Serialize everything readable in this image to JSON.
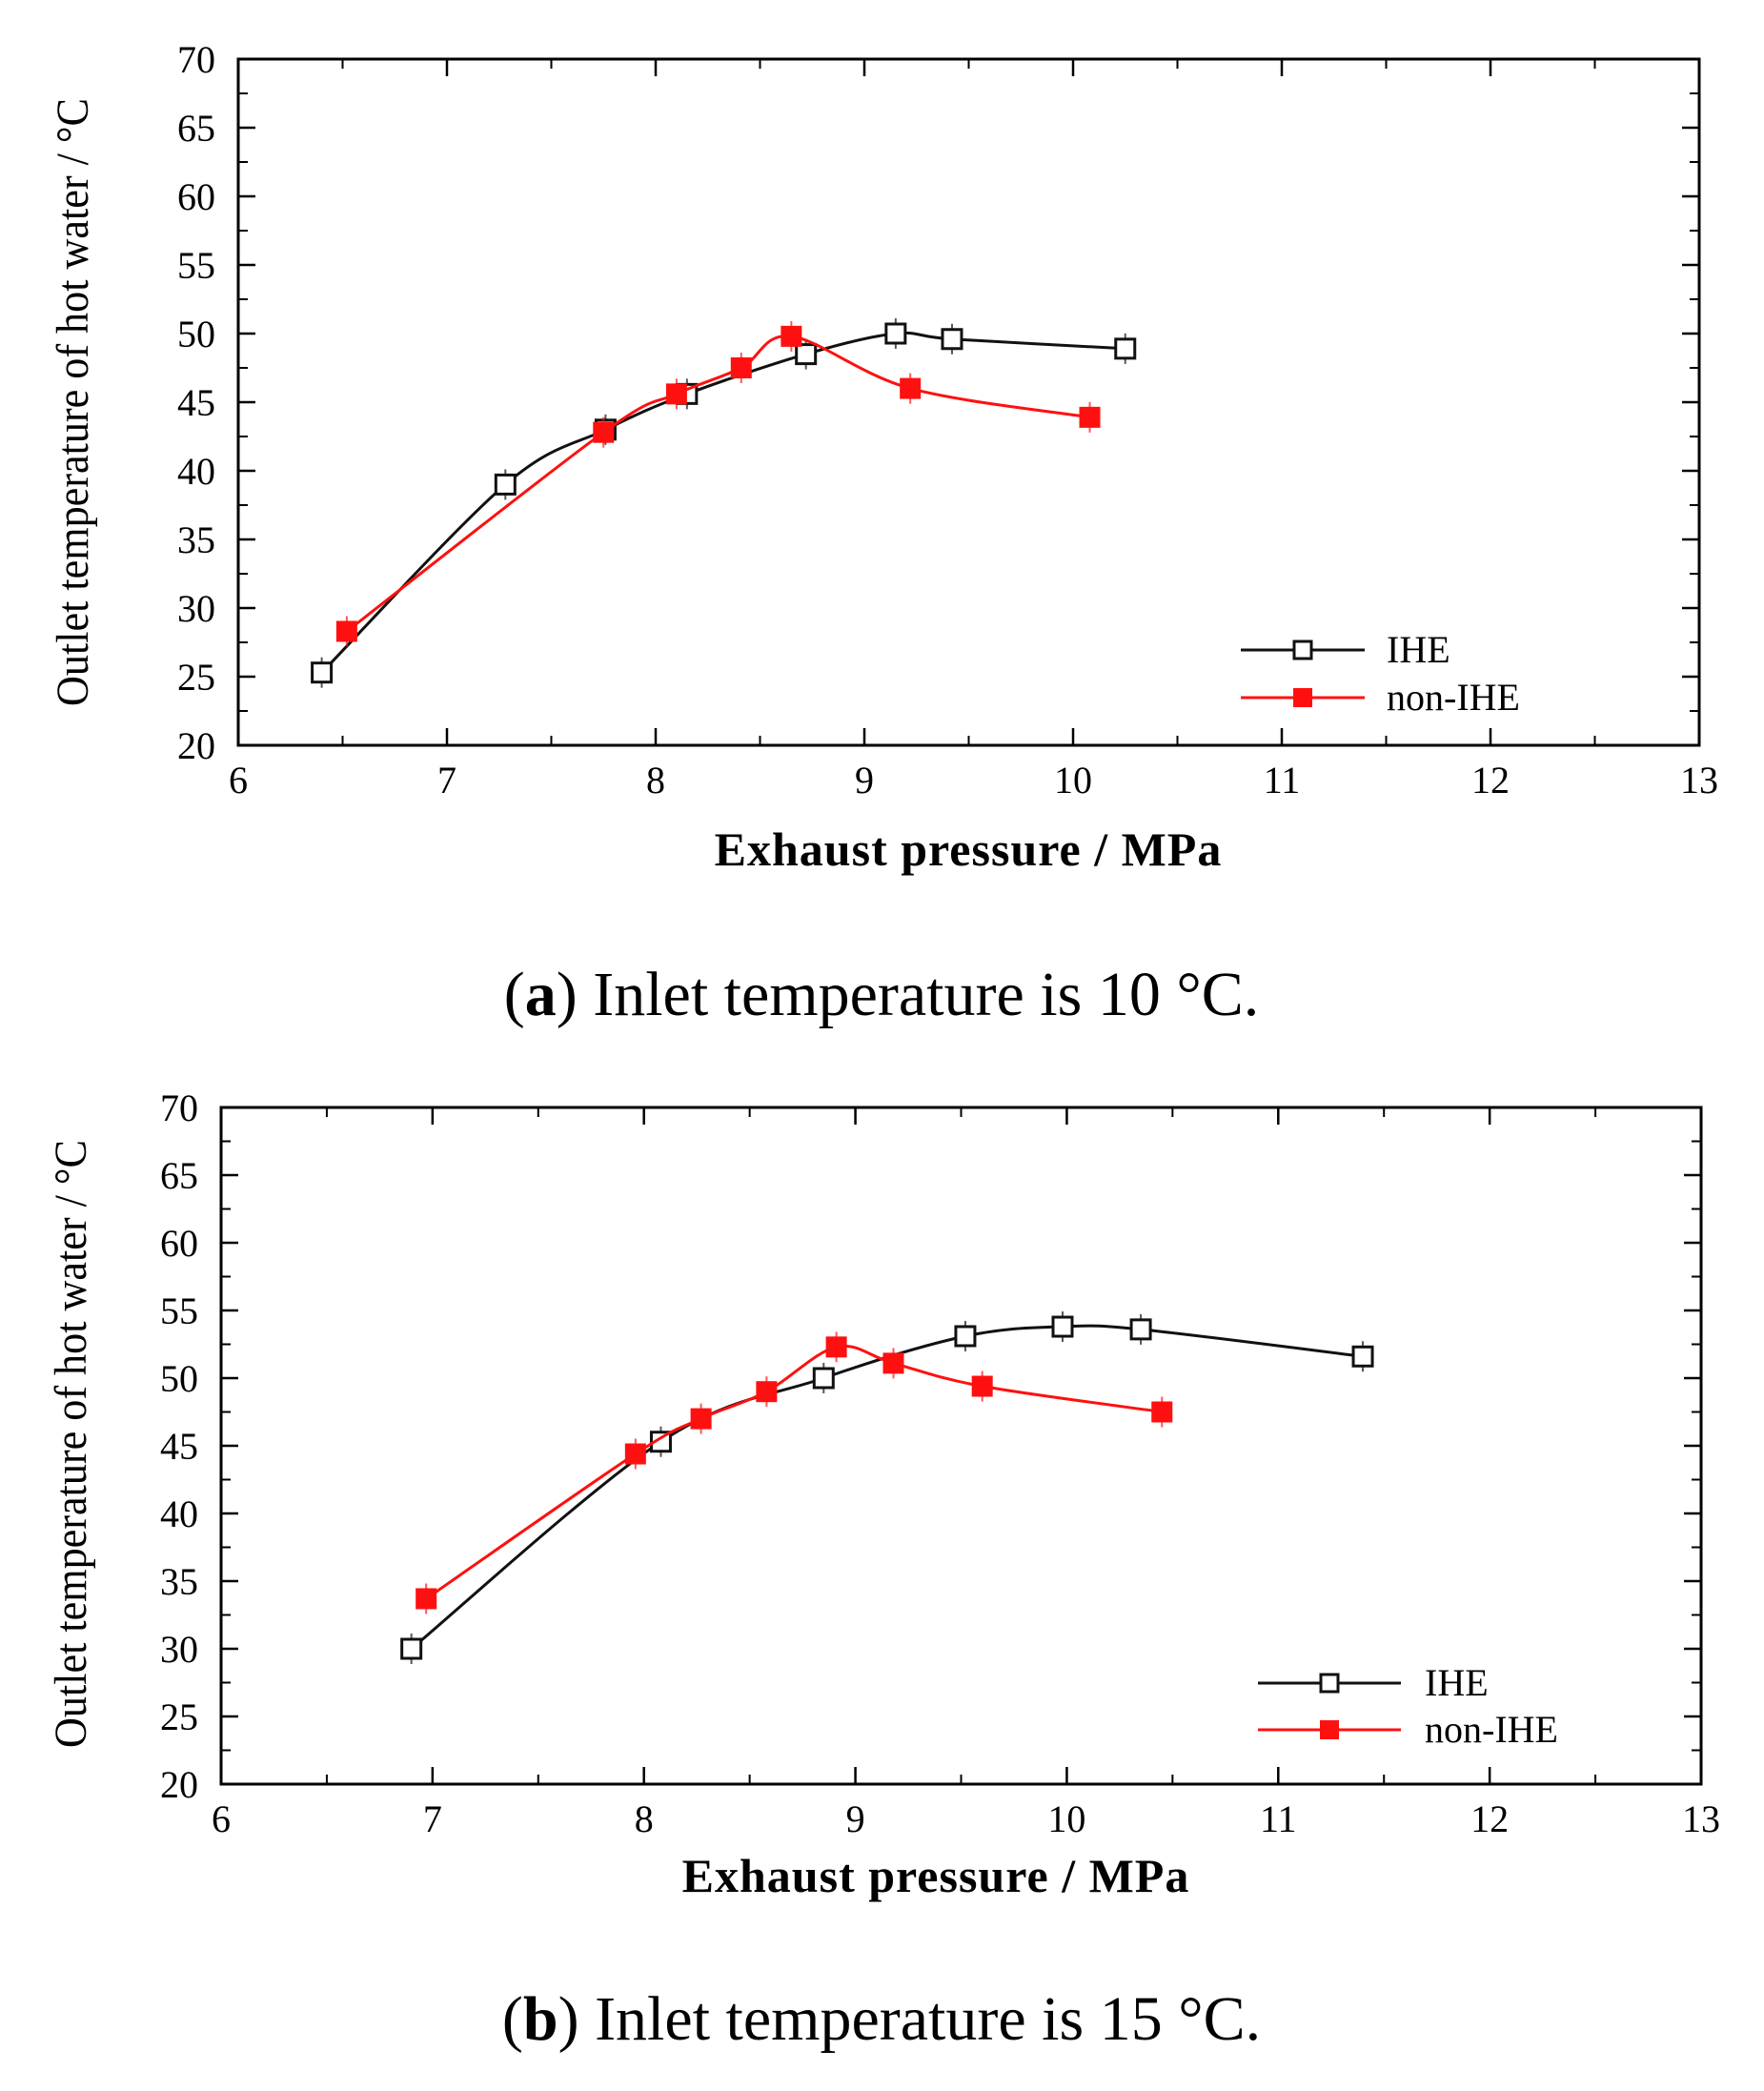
{
  "chart_data": [
    {
      "type": "line",
      "panel": "a",
      "caption": {
        "letter": "a",
        "text": " Inlet temperature is 10 °C."
      },
      "xlabel": "Exhaust pressure / MPa",
      "ylabel": "Outlet temperature of hot water / °C",
      "xlim": [
        6,
        13
      ],
      "ylim": [
        20,
        70
      ],
      "xticks": [
        6,
        7,
        8,
        9,
        10,
        11,
        12,
        13
      ],
      "yticks": [
        20,
        25,
        30,
        35,
        40,
        45,
        50,
        55,
        60,
        65,
        70
      ],
      "legend_position": "bottom-right",
      "series": [
        {
          "name": "IHE",
          "color": "#111111",
          "marker": "open-square",
          "x": [
            6.4,
            7.28,
            7.76,
            8.15,
            8.72,
            9.15,
            9.42,
            10.25
          ],
          "y": [
            25.3,
            39.0,
            43.0,
            45.6,
            48.5,
            50.0,
            49.6,
            48.9
          ]
        },
        {
          "name": "non-IHE",
          "color": "#ff1010",
          "marker": "filled-square",
          "x": [
            6.52,
            7.75,
            8.1,
            8.41,
            8.65,
            9.22,
            10.08
          ],
          "y": [
            28.3,
            42.8,
            45.6,
            47.5,
            49.8,
            46.0,
            43.9
          ]
        }
      ]
    },
    {
      "type": "line",
      "panel": "b",
      "caption": {
        "letter": "b",
        "text": " Inlet temperature is 15 °C."
      },
      "xlabel": "Exhaust pressure / MPa",
      "ylabel": "Outlet temperature of hot water / °C",
      "xlim": [
        6,
        13
      ],
      "ylim": [
        20,
        70
      ],
      "xticks": [
        6,
        7,
        8,
        9,
        10,
        11,
        12,
        13
      ],
      "yticks": [
        20,
        25,
        30,
        35,
        40,
        45,
        50,
        55,
        60,
        65,
        70
      ],
      "legend_position": "bottom-right",
      "series": [
        {
          "name": "IHE",
          "color": "#111111",
          "marker": "open-square",
          "x": [
            6.9,
            8.08,
            8.85,
            9.52,
            9.98,
            10.35,
            11.4
          ],
          "y": [
            30.0,
            45.3,
            50.0,
            53.1,
            53.8,
            53.6,
            51.6
          ]
        },
        {
          "name": "non-IHE",
          "color": "#ff1010",
          "marker": "filled-square",
          "x": [
            6.97,
            7.96,
            8.27,
            8.58,
            8.91,
            9.18,
            9.6,
            10.45
          ],
          "y": [
            33.7,
            44.4,
            47.0,
            49.0,
            52.3,
            51.1,
            49.4,
            47.5
          ]
        }
      ]
    }
  ]
}
